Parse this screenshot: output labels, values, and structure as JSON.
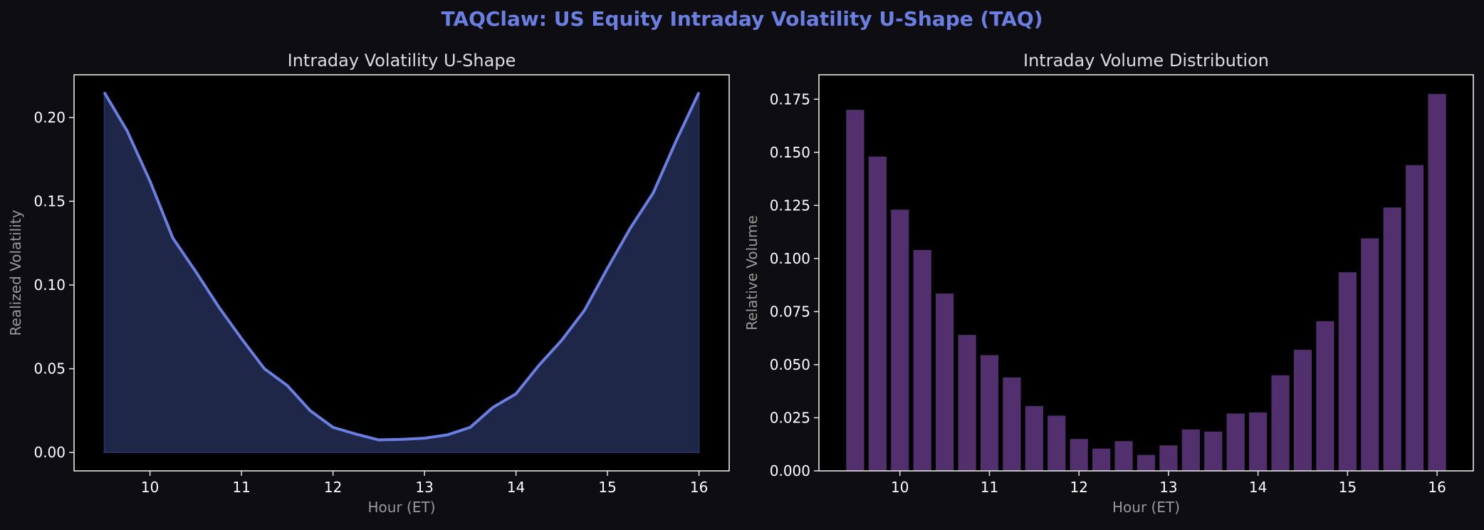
{
  "figure": {
    "title": "TAQClaw: US Equity Intraday Volatility U-Shape (TAQ)"
  },
  "colors": {
    "background": "#0d0d12",
    "plot_background": "#000000",
    "title": "#6b7fe3",
    "text": "#dddddd",
    "label": "#999999",
    "spine": "#e6e6e6",
    "line": "#6b7fe3",
    "area_fill": "#1f2749",
    "bar": "#52306d"
  },
  "chart_data": [
    {
      "type": "area",
      "title": "Intraday Volatility U-Shape",
      "xlabel": "Hour (ET)",
      "ylabel": "Realized Volatility",
      "xlim": [
        9.17,
        16.33
      ],
      "ylim": [
        -0.011,
        0.2255
      ],
      "xticks": [
        "10",
        "11",
        "12",
        "13",
        "14",
        "15",
        "16"
      ],
      "yticks": [
        "0.00",
        "0.05",
        "0.10",
        "0.15",
        "0.20"
      ],
      "grid": false,
      "x": [
        9.5,
        9.75,
        10.0,
        10.25,
        10.5,
        10.75,
        11.0,
        11.25,
        11.5,
        11.75,
        12.0,
        12.25,
        12.5,
        12.75,
        13.0,
        13.25,
        13.5,
        13.75,
        14.0,
        14.25,
        14.5,
        14.75,
        15.0,
        15.25,
        15.5,
        15.75,
        16.0
      ],
      "y": [
        0.215,
        0.192,
        0.162,
        0.128,
        0.108,
        0.087,
        0.068,
        0.05,
        0.04,
        0.025,
        0.015,
        0.011,
        0.0075,
        0.0078,
        0.0085,
        0.0105,
        0.015,
        0.027,
        0.035,
        0.052,
        0.067,
        0.085,
        0.11,
        0.134,
        0.155,
        0.186,
        0.215
      ]
    },
    {
      "type": "bar",
      "title": "Intraday Volume Distribution",
      "xlabel": "Hour (ET)",
      "ylabel": "Relative Volume",
      "xlim": [
        9.095,
        16.405
      ],
      "ylim": [
        0,
        0.1865
      ],
      "xticks": [
        "10",
        "11",
        "12",
        "13",
        "14",
        "15",
        "16"
      ],
      "yticks": [
        "0.000",
        "0.025",
        "0.050",
        "0.075",
        "0.100",
        "0.125",
        "0.150",
        "0.175"
      ],
      "grid": false,
      "x": [
        9.5,
        9.75,
        10.0,
        10.25,
        10.5,
        10.75,
        11.0,
        11.25,
        11.5,
        11.75,
        12.0,
        12.25,
        12.5,
        12.75,
        13.0,
        13.25,
        13.5,
        13.75,
        14.0,
        14.25,
        14.5,
        14.75,
        15.0,
        15.25,
        15.5,
        15.75,
        16.0
      ],
      "values": [
        0.17,
        0.148,
        0.123,
        0.104,
        0.0835,
        0.064,
        0.0545,
        0.044,
        0.0305,
        0.026,
        0.015,
        0.0105,
        0.014,
        0.0075,
        0.012,
        0.0195,
        0.0185,
        0.027,
        0.0275,
        0.045,
        0.057,
        0.0705,
        0.0935,
        0.1095,
        0.124,
        0.144,
        0.1775
      ]
    }
  ]
}
